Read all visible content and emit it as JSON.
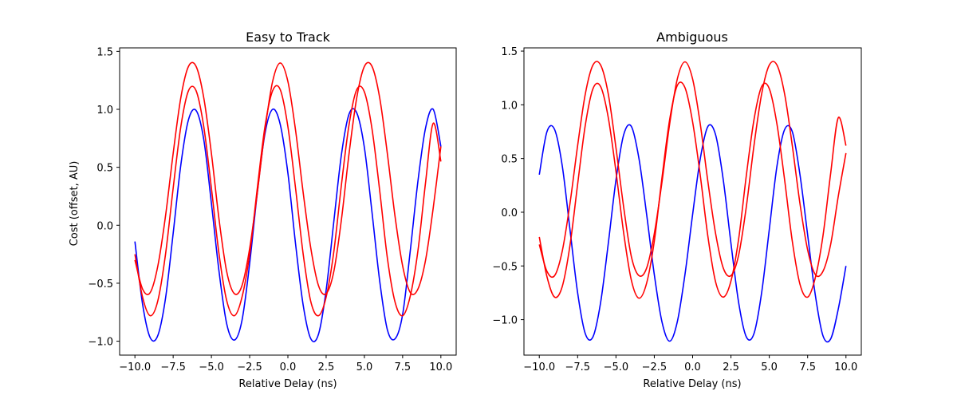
{
  "figure": {
    "background": "#ffffff"
  },
  "chart_data": [
    {
      "type": "line",
      "title": "Easy to Track",
      "xlabel": "Relative Delay (ns)",
      "ylabel": "Cost (offset, AU)",
      "xlim": [
        -11.0,
        11.0
      ],
      "ylim": [
        -1.12,
        1.53
      ],
      "xticks": [
        -10.0,
        -7.5,
        -5.0,
        -2.5,
        0.0,
        2.5,
        5.0,
        7.5,
        10.0
      ],
      "xtick_labels": [
        "−10.0",
        "−7.5",
        "−5.0",
        "−2.5",
        "0.0",
        "2.5",
        "5.0",
        "7.5",
        "10.0"
      ],
      "yticks": [
        -1.0,
        -0.5,
        0.0,
        0.5,
        1.0,
        1.5
      ],
      "ytick_labels": [
        "−1.0",
        "−0.5",
        "0.0",
        "0.5",
        "1.0",
        "1.5"
      ],
      "grid": false,
      "legend": "none",
      "series": [
        {
          "color": "#0000ff",
          "x": [
            -10.0,
            -9.5,
            -9.0,
            -8.5,
            -8.0,
            -7.5,
            -7.0,
            -6.5,
            -6.0,
            -5.5,
            -5.0,
            -4.5,
            -4.0,
            -3.5,
            -3.0,
            -2.5,
            -2.0,
            -1.5,
            -1.0,
            -0.5,
            0.0,
            0.5,
            1.0,
            1.5,
            2.0,
            2.5,
            3.0,
            3.5,
            4.0,
            4.5,
            5.0,
            5.5,
            6.0,
            6.5,
            7.0,
            7.5,
            8.0,
            8.5,
            9.0,
            9.5,
            10.0
          ],
          "y": [
            -0.14,
            -0.68,
            -0.97,
            -0.95,
            -0.63,
            -0.07,
            0.52,
            0.91,
            0.99,
            0.74,
            0.19,
            -0.4,
            -0.85,
            -0.99,
            -0.82,
            -0.33,
            0.28,
            0.79,
            1.0,
            0.87,
            0.45,
            -0.16,
            -0.69,
            -0.98,
            -0.94,
            -0.56,
            0.03,
            0.61,
            0.96,
            0.97,
            0.67,
            0.11,
            -0.48,
            -0.9,
            -0.98,
            -0.77,
            -0.22,
            0.38,
            0.84,
            1.0,
            0.68
          ]
        },
        {
          "color": "#ff0000",
          "x": [
            -10.0,
            -9.5,
            -9.0,
            -8.5,
            -8.0,
            -7.5,
            -7.0,
            -6.5,
            -6.0,
            -5.5,
            -5.0,
            -4.5,
            -4.0,
            -3.5,
            -3.0,
            -2.5,
            -2.0,
            -1.5,
            -1.0,
            -0.5,
            0.0,
            0.5,
            1.0,
            1.5,
            2.0,
            2.5,
            3.0,
            3.5,
            4.0,
            4.5,
            5.0,
            5.5,
            6.0,
            6.5,
            7.0,
            7.5,
            8.0,
            8.5,
            9.0,
            9.5,
            10.0
          ],
          "y": [
            -0.25,
            -0.62,
            -0.78,
            -0.65,
            -0.25,
            0.32,
            0.85,
            1.16,
            1.16,
            0.85,
            0.32,
            -0.25,
            -0.65,
            -0.78,
            -0.62,
            -0.25,
            0.32,
            0.85,
            1.16,
            1.17,
            0.85,
            0.32,
            -0.25,
            -0.66,
            -0.78,
            -0.62,
            -0.23,
            0.35,
            0.87,
            1.17,
            1.15,
            0.83,
            0.3,
            -0.28,
            -0.66,
            -0.78,
            -0.61,
            -0.22,
            0.37,
            0.88,
            0.55
          ]
        },
        {
          "color": "#ff0000",
          "x": [
            -10.0,
            -9.5,
            -9.0,
            -8.5,
            -8.0,
            -7.5,
            -7.0,
            -6.5,
            -6.0,
            -5.5,
            -5.0,
            -4.5,
            -4.0,
            -3.5,
            -3.0,
            -2.5,
            -2.0,
            -1.5,
            -1.0,
            -0.5,
            0.0,
            0.5,
            1.0,
            1.5,
            2.0,
            2.5,
            3.0,
            3.5,
            4.0,
            4.5,
            5.0,
            5.5,
            6.0,
            6.5,
            7.0,
            7.5,
            8.0,
            8.5,
            9.0,
            9.5,
            10.0
          ],
          "y": [
            -0.3,
            -0.55,
            -0.58,
            -0.35,
            0.08,
            0.62,
            1.1,
            1.37,
            1.37,
            1.1,
            0.62,
            0.05,
            -0.4,
            -0.59,
            -0.52,
            -0.2,
            0.28,
            0.82,
            1.24,
            1.4,
            1.24,
            0.82,
            0.28,
            -0.2,
            -0.52,
            -0.59,
            -0.4,
            0.05,
            0.62,
            1.1,
            1.37,
            1.37,
            1.1,
            0.62,
            0.08,
            -0.35,
            -0.58,
            -0.55,
            -0.3,
            0.15,
            0.68
          ]
        }
      ]
    },
    {
      "type": "line",
      "title": "Ambiguous",
      "xlabel": "Relative Delay (ns)",
      "ylabel": "",
      "xlim": [
        -11.0,
        11.0
      ],
      "ylim": [
        -1.33,
        1.53
      ],
      "xticks": [
        -10.0,
        -7.5,
        -5.0,
        -2.5,
        0.0,
        2.5,
        5.0,
        7.5,
        10.0
      ],
      "xtick_labels": [
        "−10.0",
        "−7.5",
        "−5.0",
        "−2.5",
        "0.0",
        "2.5",
        "5.0",
        "7.5",
        "10.0"
      ],
      "yticks": [
        -1.0,
        -0.5,
        0.0,
        0.5,
        1.0,
        1.5
      ],
      "ytick_labels": [
        "−1.0",
        "−0.5",
        "0.0",
        "0.5",
        "1.0",
        "1.5"
      ],
      "grid": false,
      "legend": "none",
      "series": [
        {
          "color": "#0000ff",
          "x": [
            -10.0,
            -9.5,
            -9.0,
            -8.5,
            -8.0,
            -7.5,
            -7.0,
            -6.5,
            -6.0,
            -5.5,
            -5.0,
            -4.5,
            -4.0,
            -3.5,
            -3.0,
            -2.5,
            -2.0,
            -1.5,
            -1.0,
            -0.5,
            0.0,
            0.5,
            1.0,
            1.5,
            2.0,
            2.5,
            3.0,
            3.5,
            4.0,
            4.5,
            5.0,
            5.5,
            6.0,
            6.5,
            7.0,
            7.5,
            8.0,
            8.5,
            9.0,
            9.5,
            10.0
          ],
          "y": [
            0.35,
            0.75,
            0.77,
            0.43,
            -0.16,
            -0.75,
            -1.13,
            -1.16,
            -0.84,
            -0.29,
            0.3,
            0.72,
            0.8,
            0.5,
            -0.02,
            -0.58,
            -1.02,
            -1.2,
            -1.02,
            -0.58,
            -0.02,
            0.5,
            0.8,
            0.72,
            0.3,
            -0.29,
            -0.84,
            -1.16,
            -1.13,
            -0.75,
            -0.16,
            0.43,
            0.77,
            0.75,
            0.35,
            -0.21,
            -0.77,
            -1.15,
            -1.18,
            -0.9,
            -0.5
          ]
        },
        {
          "color": "#ff0000",
          "x": [
            -10.0,
            -9.5,
            -9.0,
            -8.5,
            -8.0,
            -7.5,
            -7.0,
            -6.5,
            -6.0,
            -5.5,
            -5.0,
            -4.5,
            -4.0,
            -3.5,
            -3.0,
            -2.5,
            -2.0,
            -1.5,
            -1.0,
            -0.5,
            0.0,
            0.5,
            1.0,
            1.5,
            2.0,
            2.5,
            3.0,
            3.5,
            4.0,
            4.5,
            5.0,
            5.5,
            6.0,
            6.5,
            7.0,
            7.5,
            8.0,
            8.5,
            9.0,
            9.5,
            10.0
          ],
          "y": [
            -0.23,
            -0.6,
            -0.79,
            -0.69,
            -0.31,
            0.26,
            0.81,
            1.15,
            1.17,
            0.88,
            0.38,
            -0.19,
            -0.63,
            -0.8,
            -0.66,
            -0.27,
            0.32,
            0.86,
            1.18,
            1.16,
            0.84,
            0.34,
            -0.23,
            -0.65,
            -0.79,
            -0.64,
            -0.25,
            0.34,
            0.86,
            1.17,
            1.15,
            0.82,
            0.3,
            -0.27,
            -0.67,
            -0.79,
            -0.61,
            -0.22,
            0.36,
            0.88,
            0.62
          ]
        },
        {
          "color": "#ff0000",
          "x": [
            -10.0,
            -9.5,
            -9.0,
            -8.5,
            -8.0,
            -7.5,
            -7.0,
            -6.5,
            -6.0,
            -5.5,
            -5.0,
            -4.5,
            -4.0,
            -3.5,
            -3.0,
            -2.5,
            -2.0,
            -1.5,
            -1.0,
            -0.5,
            0.0,
            0.5,
            1.0,
            1.5,
            2.0,
            2.5,
            3.0,
            3.5,
            4.0,
            4.5,
            5.0,
            5.5,
            6.0,
            6.5,
            7.0,
            7.5,
            8.0,
            8.5,
            9.0,
            9.5,
            10.0
          ],
          "y": [
            -0.3,
            -0.55,
            -0.59,
            -0.36,
            0.08,
            0.62,
            1.1,
            1.37,
            1.37,
            1.1,
            0.6,
            0.05,
            -0.41,
            -0.59,
            -0.52,
            -0.2,
            0.28,
            0.82,
            1.24,
            1.4,
            1.24,
            0.82,
            0.28,
            -0.2,
            -0.52,
            -0.59,
            -0.4,
            0.05,
            0.62,
            1.1,
            1.37,
            1.37,
            1.1,
            0.62,
            0.08,
            -0.35,
            -0.58,
            -0.55,
            -0.3,
            0.15,
            0.55
          ]
        }
      ]
    }
  ]
}
